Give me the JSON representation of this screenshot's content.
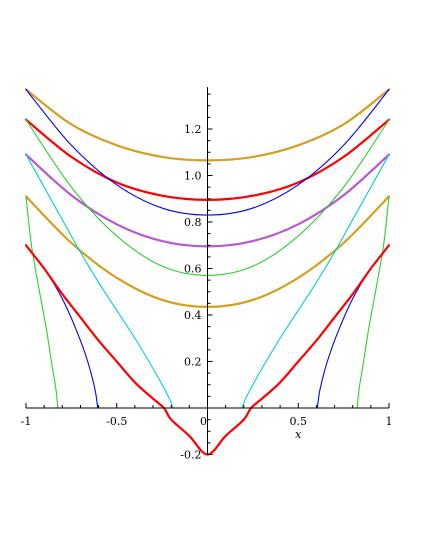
{
  "chart_data": {
    "type": "line",
    "title": "",
    "xlabel": "x",
    "ylabel": "",
    "xlim": [
      -1,
      1
    ],
    "ylim": [
      -0.2,
      1.38
    ],
    "grid": false,
    "legend": "none",
    "x_ticks": [
      {
        "value": -1,
        "label": "-1"
      },
      {
        "value": -0.5,
        "label": "-0.5"
      },
      {
        "value": 0,
        "label": "0"
      },
      {
        "value": 0.5,
        "label": "0.5"
      },
      {
        "value": 1,
        "label": "1"
      }
    ],
    "y_ticks": [
      {
        "value": -0.2,
        "label": "-0.2"
      },
      {
        "value": 0.2,
        "label": "0.2"
      },
      {
        "value": 0.4,
        "label": "0.4"
      },
      {
        "value": 0.6,
        "label": "0.6"
      },
      {
        "value": 0.8,
        "label": "0.8"
      },
      {
        "value": 1.0,
        "label": "1.0"
      },
      {
        "value": 1.2,
        "label": "1.2"
      }
    ],
    "series": [
      {
        "color": "#d4a020",
        "width": 2.2,
        "points": [
          [
            -1,
            1.37
          ],
          [
            -0.75,
            1.22
          ],
          [
            -0.5,
            1.13
          ],
          [
            -0.25,
            1.08
          ],
          [
            0,
            1.065
          ],
          [
            0.25,
            1.08
          ],
          [
            0.5,
            1.13
          ],
          [
            0.75,
            1.22
          ],
          [
            1,
            1.37
          ]
        ]
      },
      {
        "color": "#ff0000",
        "width": 2.2,
        "points": [
          [
            -1,
            1.24
          ],
          [
            -0.75,
            1.08
          ],
          [
            -0.5,
            0.97
          ],
          [
            -0.25,
            0.913
          ],
          [
            0,
            0.895
          ],
          [
            0.25,
            0.913
          ],
          [
            0.5,
            0.97
          ],
          [
            0.75,
            1.08
          ],
          [
            1,
            1.24
          ]
        ]
      },
      {
        "color": "#0000ff",
        "width": 1.1,
        "points": [
          [
            -1,
            1.37
          ],
          [
            -0.75,
            1.13
          ],
          [
            -0.5,
            0.96
          ],
          [
            -0.25,
            0.86
          ],
          [
            0,
            0.83
          ],
          [
            0.25,
            0.86
          ],
          [
            0.5,
            0.96
          ],
          [
            0.75,
            1.13
          ],
          [
            1,
            1.37
          ]
        ]
      },
      {
        "color": "#ba55d3",
        "width": 2.2,
        "points": [
          [
            -1,
            1.09
          ],
          [
            -0.75,
            0.915
          ],
          [
            -0.5,
            0.79
          ],
          [
            -0.25,
            0.718
          ],
          [
            0,
            0.695
          ],
          [
            0.25,
            0.718
          ],
          [
            0.5,
            0.79
          ],
          [
            0.75,
            0.915
          ],
          [
            1,
            1.09
          ]
        ]
      },
      {
        "color": "#32cd32",
        "width": 1.1,
        "points": [
          [
            -1,
            1.24
          ],
          [
            -0.75,
            0.95
          ],
          [
            -0.5,
            0.74
          ],
          [
            -0.25,
            0.61
          ],
          [
            0,
            0.57
          ],
          [
            0.25,
            0.61
          ],
          [
            0.5,
            0.74
          ],
          [
            0.75,
            0.95
          ],
          [
            1,
            1.24
          ]
        ]
      },
      {
        "color": "#d4a020",
        "width": 2.2,
        "points": [
          [
            -1,
            0.91
          ],
          [
            -0.75,
            0.71
          ],
          [
            -0.5,
            0.56
          ],
          [
            -0.25,
            0.465
          ],
          [
            0,
            0.435
          ],
          [
            0.25,
            0.465
          ],
          [
            0.5,
            0.56
          ],
          [
            0.75,
            0.71
          ],
          [
            1,
            0.91
          ]
        ]
      },
      {
        "color": "#00d0d0",
        "width": 1.1,
        "points": [
          [
            -1,
            1.09
          ],
          [
            -0.9,
            0.95
          ],
          [
            -0.8,
            0.81
          ],
          [
            -0.7,
            0.67
          ],
          [
            -0.6,
            0.54
          ],
          [
            -0.5,
            0.42
          ],
          [
            -0.4,
            0.3
          ],
          [
            -0.3,
            0.17
          ],
          [
            -0.25,
            0.1
          ],
          [
            -0.21,
            0.04
          ],
          [
            -0.19,
            0
          ]
        ]
      },
      {
        "color": "#00d0d0",
        "width": 1.1,
        "points": [
          [
            0.19,
            0
          ],
          [
            0.21,
            0.04
          ],
          [
            0.25,
            0.1
          ],
          [
            0.3,
            0.17
          ],
          [
            0.4,
            0.3
          ],
          [
            0.5,
            0.42
          ],
          [
            0.6,
            0.54
          ],
          [
            0.7,
            0.67
          ],
          [
            0.8,
            0.81
          ],
          [
            0.9,
            0.95
          ],
          [
            1,
            1.09
          ]
        ]
      },
      {
        "color": "#32cd32",
        "width": 1.1,
        "points": [
          [
            -1,
            0.91
          ],
          [
            -0.97,
            0.7
          ],
          [
            -0.93,
            0.52
          ],
          [
            -0.89,
            0.35
          ],
          [
            -0.86,
            0.2
          ],
          [
            -0.835,
            0.08
          ],
          [
            -0.825,
            0
          ]
        ]
      },
      {
        "color": "#32cd32",
        "width": 1.1,
        "points": [
          [
            0.825,
            0
          ],
          [
            0.835,
            0.08
          ],
          [
            0.86,
            0.2
          ],
          [
            0.89,
            0.35
          ],
          [
            0.93,
            0.52
          ],
          [
            0.97,
            0.7
          ],
          [
            1,
            0.91
          ]
        ]
      },
      {
        "color": "#0000ff",
        "width": 1.1,
        "points": [
          [
            -1,
            0.7
          ],
          [
            -0.9,
            0.6
          ],
          [
            -0.8,
            0.47
          ],
          [
            -0.72,
            0.33
          ],
          [
            -0.66,
            0.2
          ],
          [
            -0.62,
            0.08
          ],
          [
            -0.605,
            0
          ]
        ]
      },
      {
        "color": "#0000ff",
        "width": 1.1,
        "points": [
          [
            0.605,
            0
          ],
          [
            0.62,
            0.08
          ],
          [
            0.66,
            0.2
          ],
          [
            0.72,
            0.33
          ],
          [
            0.8,
            0.47
          ],
          [
            0.9,
            0.6
          ],
          [
            1,
            0.7
          ]
        ]
      },
      {
        "color": "#ff0000",
        "width": 2.2,
        "points": [
          [
            -1,
            0.7
          ],
          [
            -0.95,
            0.65
          ],
          [
            -0.9,
            0.6
          ],
          [
            -0.8,
            0.49
          ],
          [
            -0.7,
            0.39
          ],
          [
            -0.6,
            0.29
          ],
          [
            -0.5,
            0.2
          ],
          [
            -0.4,
            0.11
          ],
          [
            -0.3,
            0.04
          ],
          [
            -0.24,
            0.0
          ],
          [
            -0.2,
            -0.05
          ],
          [
            -0.1,
            -0.12
          ],
          [
            0,
            -0.2
          ],
          [
            0.1,
            -0.12
          ],
          [
            0.2,
            -0.05
          ],
          [
            0.24,
            0.0
          ],
          [
            0.3,
            0.04
          ],
          [
            0.4,
            0.11
          ],
          [
            0.5,
            0.2
          ],
          [
            0.6,
            0.29
          ],
          [
            0.7,
            0.39
          ],
          [
            0.8,
            0.49
          ],
          [
            0.9,
            0.6
          ],
          [
            0.95,
            0.65
          ],
          [
            1,
            0.7
          ]
        ]
      }
    ]
  }
}
